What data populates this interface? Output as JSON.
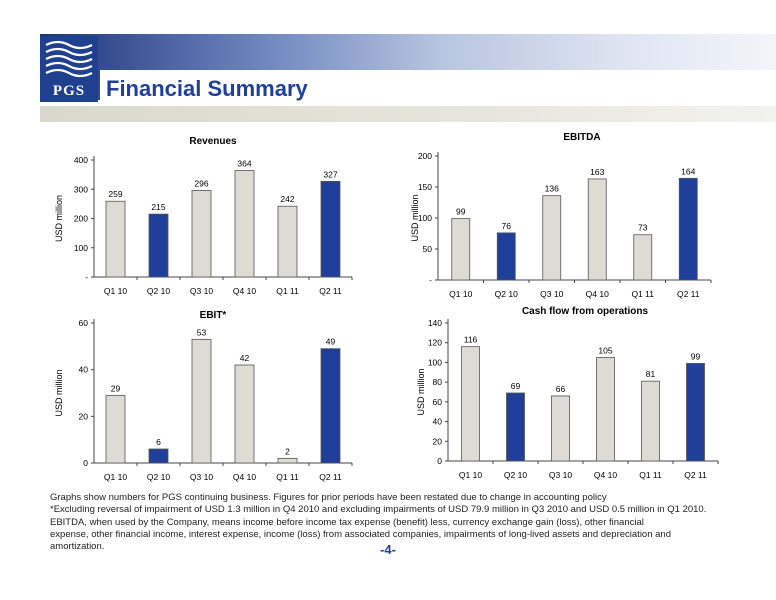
{
  "header": {
    "logo_text": "PGS",
    "title": "Financial Summary"
  },
  "colors": {
    "highlight": "#1f3f9a",
    "default_bar": "#dcdcd4",
    "bar_outline": "#555555"
  },
  "chart_data": [
    {
      "id": "revenues",
      "type": "bar",
      "title": "Revenues",
      "ylabel": "USD million",
      "categories": [
        "Q1 10",
        "Q2 10",
        "Q3 10",
        "Q4 10",
        "Q1 11",
        "Q2 11"
      ],
      "values": [
        259,
        215,
        296,
        364,
        242,
        327
      ],
      "highlight": [
        false,
        true,
        false,
        false,
        false,
        true
      ],
      "ylim": [
        0,
        400
      ],
      "yticks": [
        0,
        100,
        200,
        300,
        400
      ],
      "ytick_labels": [
        "-",
        "100",
        "200",
        "300",
        "400"
      ]
    },
    {
      "id": "ebitda",
      "type": "bar",
      "title": "EBITDA",
      "ylabel": "USD million",
      "categories": [
        "Q1 10",
        "Q2 10",
        "Q3 10",
        "Q4 10",
        "Q1 11",
        "Q2 11"
      ],
      "values": [
        99,
        76,
        136,
        163,
        73,
        164
      ],
      "highlight": [
        false,
        true,
        false,
        false,
        false,
        true
      ],
      "ylim": [
        0,
        200
      ],
      "yticks": [
        0,
        50,
        100,
        150,
        200
      ],
      "ytick_labels": [
        "-",
        "50",
        "100",
        "150",
        "200"
      ]
    },
    {
      "id": "ebit",
      "type": "bar",
      "title": "EBIT*",
      "ylabel": "USD million",
      "categories": [
        "Q1 10",
        "Q2 10",
        "Q3 10",
        "Q4 10",
        "Q1 11",
        "Q2 11"
      ],
      "values": [
        29,
        6,
        53,
        42,
        2,
        49
      ],
      "highlight": [
        false,
        true,
        false,
        false,
        false,
        true
      ],
      "ylim": [
        0,
        60
      ],
      "yticks": [
        0,
        20,
        40,
        60
      ],
      "ytick_labels": [
        "0",
        "20",
        "40",
        "60"
      ]
    },
    {
      "id": "cashflow",
      "type": "bar",
      "title": "Cash flow from operations",
      "ylabel": "USD million",
      "categories": [
        "Q1 10",
        "Q2 10",
        "Q3 10",
        "Q4 10",
        "Q1 11",
        "Q2 11"
      ],
      "values": [
        116,
        69,
        66,
        105,
        81,
        99
      ],
      "highlight": [
        false,
        true,
        false,
        false,
        false,
        true
      ],
      "ylim": [
        0,
        140
      ],
      "yticks": [
        0,
        20,
        40,
        60,
        80,
        100,
        120,
        140
      ],
      "ytick_labels": [
        "0",
        "20",
        "40",
        "60",
        "80",
        "100",
        "120",
        "140"
      ]
    }
  ],
  "footnotes": [
    "Graphs show numbers for PGS continuing business. Figures for prior periods have been restated due to change in accounting policy",
    "*Excluding reversal of impairment of USD 1.3 million in Q4 2010 and excluding impairments of USD 79.9 million in Q3 2010 and USD 0.5 million in Q1 2010.",
    "EBITDA, when used by the Company, means income before income tax expense (benefit) less, currency exchange gain (loss), other financial",
    "expense, other financial income, interest expense,  income (loss) from associated companies, impairments of long-lived assets and depreciation and",
    "amortization."
  ],
  "page_number": "-4-"
}
